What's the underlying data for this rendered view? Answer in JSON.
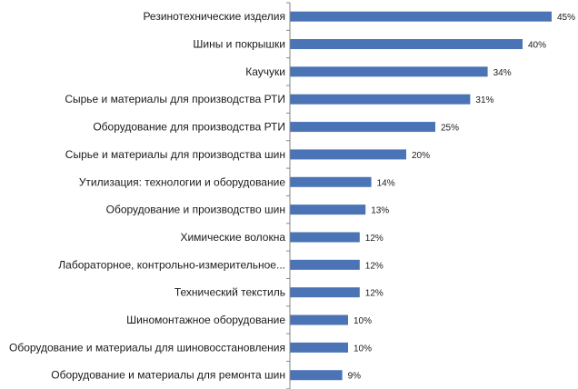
{
  "chart_data": {
    "type": "bar",
    "orientation": "horizontal",
    "categories": [
      "Резинотехнические изделия",
      "Шины и покрышки",
      "Каучуки",
      "Сырье и материалы для производства РТИ",
      "Оборудование для производства РТИ",
      "Сырье и материалы для производства шин",
      "Утилизация: технологии и оборудование",
      "Оборудование и производство шин",
      "Химические волокна",
      "Лабораторное, контрольно-измерительное...",
      "Технический текстиль",
      "Шиномонтажное оборудование",
      "Оборудование и материалы для шиновосстановления",
      "Оборудование и материалы для ремонта шин"
    ],
    "values": [
      45,
      40,
      34,
      31,
      25,
      20,
      14,
      13,
      12,
      12,
      12,
      10,
      10,
      9
    ],
    "value_labels": [
      "45%",
      "40%",
      "34%",
      "31%",
      "25%",
      "20%",
      "14%",
      "13%",
      "12%",
      "12%",
      "12%",
      "10%",
      "10%",
      "9%"
    ],
    "xlim": [
      0,
      45
    ],
    "bar_color": "#4a74b5",
    "axis_color": "#868686",
    "grid": false,
    "legend": "none"
  }
}
